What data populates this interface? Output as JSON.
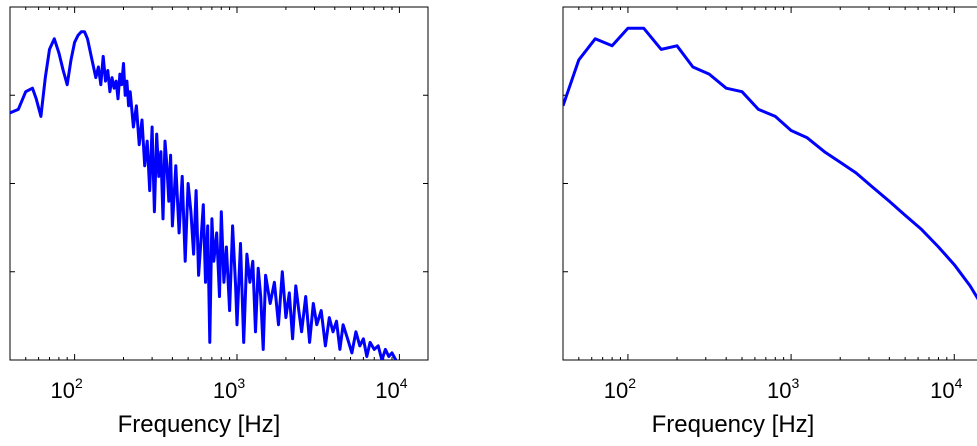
{
  "chart_data": [
    {
      "type": "line",
      "title": "",
      "xlabel": "Frequency [Hz]",
      "ylabel": "",
      "xscale": "log",
      "xlim": [
        40,
        15000
      ],
      "ylim": [
        0,
        1
      ],
      "y_ticks_labeled": false,
      "grid": false,
      "legend": "none",
      "x_tick_labels": [
        {
          "value": 100,
          "base": "10",
          "exp": "2"
        },
        {
          "value": 1000,
          "base": "10",
          "exp": "3"
        },
        {
          "value": 10000,
          "base": "10",
          "exp": "4"
        }
      ],
      "series": [
        {
          "color": "#0000ff",
          "x": [
            40,
            45,
            50,
            55,
            58,
            62,
            66,
            70,
            75,
            80,
            85,
            90,
            95,
            100,
            105,
            110,
            115,
            120,
            128,
            135,
            140,
            145,
            150,
            155,
            160,
            165,
            170,
            175,
            180,
            185,
            190,
            195,
            200,
            205,
            210,
            215,
            220,
            230,
            240,
            250,
            260,
            270,
            280,
            290,
            300,
            310,
            320,
            330,
            340,
            350,
            360,
            370,
            380,
            390,
            400,
            420,
            440,
            460,
            480,
            500,
            520,
            540,
            560,
            580,
            600,
            620,
            640,
            660,
            680,
            700,
            720,
            750,
            780,
            800,
            830,
            860,
            900,
            940,
            980,
            1000,
            1050,
            1100,
            1150,
            1200,
            1250,
            1300,
            1350,
            1400,
            1450,
            1500,
            1600,
            1700,
            1800,
            1900,
            2000,
            2100,
            2200,
            2300,
            2400,
            2500,
            2650,
            2800,
            2950,
            3100,
            3300,
            3500,
            3700,
            3900,
            4100,
            4300,
            4500,
            4800,
            5100,
            5400,
            5700,
            6000,
            6300,
            6600,
            7000,
            7400,
            7800,
            8200,
            8600,
            9000,
            9500
          ],
          "y": [
            0.7,
            0.71,
            0.76,
            0.77,
            0.74,
            0.69,
            0.8,
            0.88,
            0.91,
            0.87,
            0.82,
            0.78,
            0.85,
            0.9,
            0.92,
            0.93,
            0.93,
            0.91,
            0.85,
            0.8,
            0.83,
            0.78,
            0.86,
            0.79,
            0.82,
            0.76,
            0.8,
            0.77,
            0.79,
            0.74,
            0.81,
            0.78,
            0.84,
            0.75,
            0.79,
            0.72,
            0.76,
            0.66,
            0.72,
            0.61,
            0.68,
            0.55,
            0.62,
            0.48,
            0.66,
            0.42,
            0.64,
            0.52,
            0.59,
            0.4,
            0.62,
            0.55,
            0.45,
            0.58,
            0.38,
            0.55,
            0.36,
            0.52,
            0.28,
            0.5,
            0.42,
            0.3,
            0.48,
            0.24,
            0.34,
            0.44,
            0.22,
            0.38,
            0.05,
            0.4,
            0.28,
            0.36,
            0.18,
            0.42,
            0.22,
            0.32,
            0.14,
            0.38,
            0.21,
            0.1,
            0.33,
            0.05,
            0.3,
            0.22,
            0.28,
            0.08,
            0.26,
            0.18,
            0.03,
            0.24,
            0.16,
            0.22,
            0.1,
            0.25,
            0.12,
            0.19,
            0.06,
            0.21,
            0.14,
            0.08,
            0.18,
            0.05,
            0.16,
            0.1,
            0.14,
            0.04,
            0.12,
            0.08,
            0.11,
            0.03,
            0.1,
            0.06,
            0.02,
            0.08,
            0.04,
            0.06,
            0.01,
            0.05,
            0.03,
            0.04,
            0.0,
            0.03,
            0.01,
            0.02,
            0.0
          ]
        }
      ]
    },
    {
      "type": "line",
      "title": "",
      "xlabel": "Frequency [Hz]",
      "ylabel": "",
      "xscale": "log",
      "xlim": [
        40,
        15000
      ],
      "ylim": [
        0,
        1
      ],
      "y_ticks_labeled": false,
      "grid": false,
      "legend": "none",
      "x_tick_labels": [
        {
          "value": 100,
          "base": "10",
          "exp": "2"
        },
        {
          "value": 1000,
          "base": "10",
          "exp": "3"
        },
        {
          "value": 10000,
          "base": "10",
          "exp": "4"
        }
      ],
      "series": [
        {
          "color": "#0000ff",
          "x": [
            40,
            50,
            63,
            80,
            100,
            125,
            160,
            200,
            250,
            315,
            400,
            500,
            630,
            800,
            1000,
            1250,
            1600,
            2000,
            2500,
            3150,
            4000,
            5000,
            6300,
            8000,
            10000,
            12500,
            15000
          ],
          "y": [
            0.72,
            0.85,
            0.91,
            0.89,
            0.94,
            0.94,
            0.88,
            0.89,
            0.83,
            0.81,
            0.77,
            0.76,
            0.71,
            0.69,
            0.65,
            0.63,
            0.59,
            0.56,
            0.53,
            0.49,
            0.45,
            0.41,
            0.37,
            0.32,
            0.27,
            0.21,
            0.15
          ]
        }
      ]
    }
  ]
}
